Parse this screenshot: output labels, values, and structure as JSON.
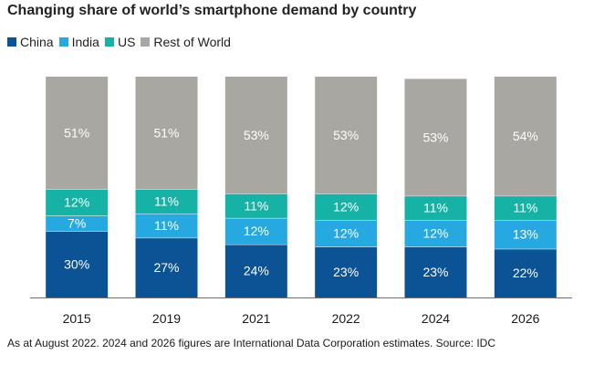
{
  "chart_data": {
    "type": "bar",
    "stacked": true,
    "title": "Changing share of world’s smartphone demand by country",
    "categories": [
      "2015",
      "2019",
      "2021",
      "2022",
      "2024",
      "2026"
    ],
    "series": [
      {
        "name": "China",
        "color": "#0b5394",
        "label_color": "#ffffff",
        "values": [
          30,
          27,
          24,
          23,
          23,
          22
        ]
      },
      {
        "name": "India",
        "color": "#26a9e0",
        "label_color": "#ffffff",
        "values": [
          7,
          11,
          12,
          12,
          12,
          13
        ]
      },
      {
        "name": "US",
        "color": "#17b2a6",
        "label_color": "#ffffff",
        "values": [
          12,
          11,
          11,
          12,
          11,
          11
        ]
      },
      {
        "name": "Rest of World",
        "color": "#a9a7a2",
        "label_color": "#ffffff",
        "values": [
          51,
          51,
          53,
          53,
          53,
          54
        ]
      }
    ],
    "value_suffix": "%",
    "ylim": [
      0,
      100
    ],
    "xlabel": "",
    "ylabel": "",
    "grid": false,
    "legend_position": "top-left"
  },
  "footnote": "As at August 2022. 2024 and 2026 figures are International Data Corporation estimates. Source: IDC"
}
